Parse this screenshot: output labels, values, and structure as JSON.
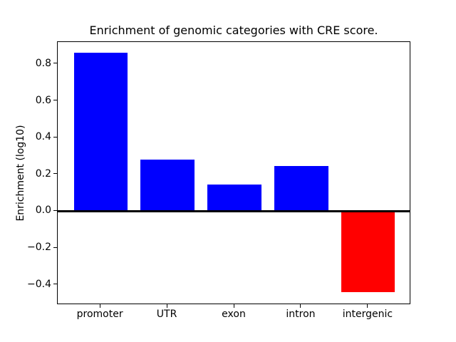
{
  "chart_data": {
    "type": "bar",
    "title": "Enrichment of genomic categories with CRE score.",
    "xlabel": "",
    "ylabel": "Enrichment (log10)",
    "categories": [
      "promoter",
      "UTR",
      "exon",
      "intron",
      "intergenic"
    ],
    "values": [
      0.86,
      0.28,
      0.145,
      0.245,
      -0.44
    ],
    "bar_colors": [
      "#0000ff",
      "#0000ff",
      "#0000ff",
      "#0000ff",
      "#ff0000"
    ],
    "positive_color": "#0000ff",
    "negative_color": "#ff0000",
    "ylim": [
      -0.51,
      0.92
    ],
    "yticks": [
      0.8,
      0.6,
      0.4,
      0.2,
      0.0,
      -0.2,
      -0.4
    ],
    "ytick_labels": [
      "0.8",
      "0.6",
      "0.4",
      "0.2",
      "0.0",
      "−0.2",
      "−0.4"
    ],
    "bar_width_fraction": 0.8,
    "x_margin_fraction": 0.05,
    "grid": false,
    "legend": null,
    "zero_line": true,
    "axis_color": "#000000",
    "text_color": "#000000",
    "background": "#ffffff"
  }
}
